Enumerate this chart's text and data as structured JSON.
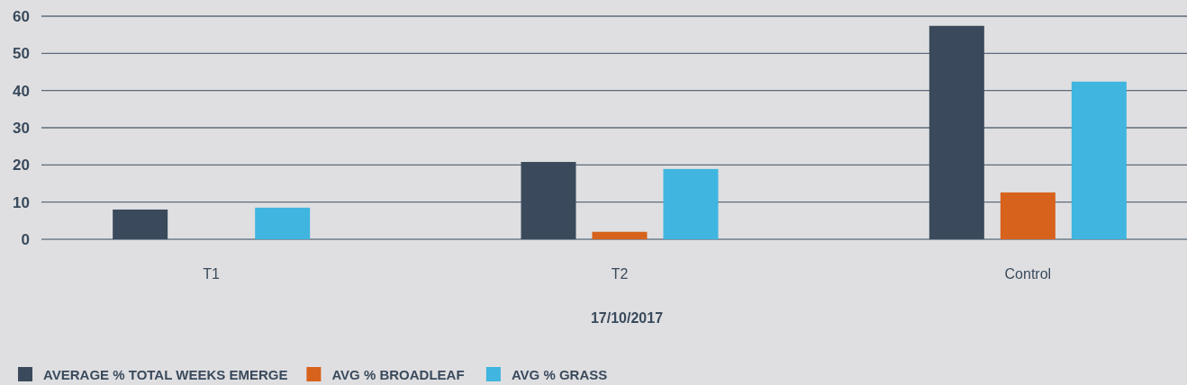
{
  "chart_data": {
    "type": "bar",
    "xlabel": "17/10/2017",
    "categories": [
      "T1",
      "T2",
      "Control"
    ],
    "series": [
      {
        "name": "AVERAGE % TOTAL WEEKS EMERGE",
        "color": "#3a4a5c",
        "values": [
          8.0,
          20.8,
          57.4
        ]
      },
      {
        "name": "AVG % BROADLEAF",
        "color": "#d6621c",
        "values": [
          0,
          2.0,
          12.6
        ]
      },
      {
        "name": "AVG % GRASS",
        "color": "#3fb5e0",
        "values": [
          8.5,
          18.9,
          42.4
        ]
      }
    ],
    "ylim": [
      0,
      60
    ],
    "yticks": [
      0,
      10,
      20,
      30,
      40,
      50,
      60
    ],
    "grid": "y",
    "legend": "bottom left"
  }
}
